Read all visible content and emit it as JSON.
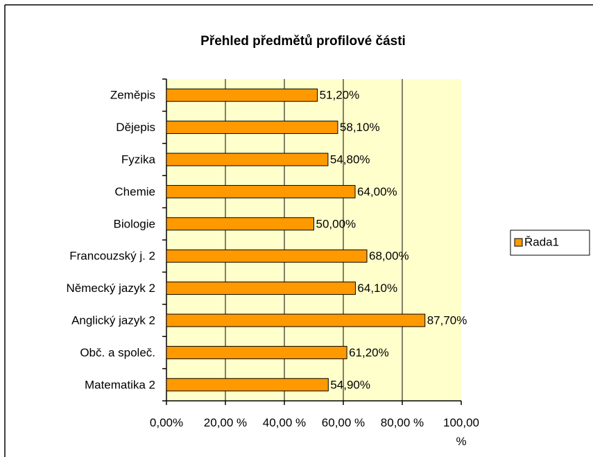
{
  "chart_data": {
    "type": "barh",
    "title": "Přehled předmětů profilové části",
    "categories": [
      "Zeměpis",
      "Dějepis",
      "Fyzika",
      "Chemie",
      "Biologie",
      "Francouzský j. 2",
      "Německý jazyk 2",
      "Anglický jazyk 2",
      "Obč. a společ.",
      "Matematika 2"
    ],
    "series": [
      {
        "name": "Řada1",
        "color": "#FF9900",
        "values": [
          51.2,
          58.1,
          54.8,
          64.0,
          50.0,
          68.0,
          64.1,
          87.7,
          61.2,
          54.9
        ],
        "value_labels": [
          "51,20%",
          "58,10%",
          "54,80%",
          "64,00%",
          "50,00%",
          "68,00%",
          "64,10%",
          "87,70%",
          "61,20%",
          "54,90%"
        ]
      }
    ],
    "xlim": [
      0,
      100
    ],
    "xticks": [
      {
        "value": 0,
        "label": "0,00%"
      },
      {
        "value": 20,
        "label": "20,00 %"
      },
      {
        "value": 40,
        "label": "40,00 %"
      },
      {
        "value": 60,
        "label": "60,00 %"
      },
      {
        "value": 80,
        "label": "80,00 %"
      },
      {
        "value": 100,
        "label": "100,00 %"
      }
    ],
    "grid": true,
    "plot_background": "#FFFFCC",
    "legend": "right"
  }
}
